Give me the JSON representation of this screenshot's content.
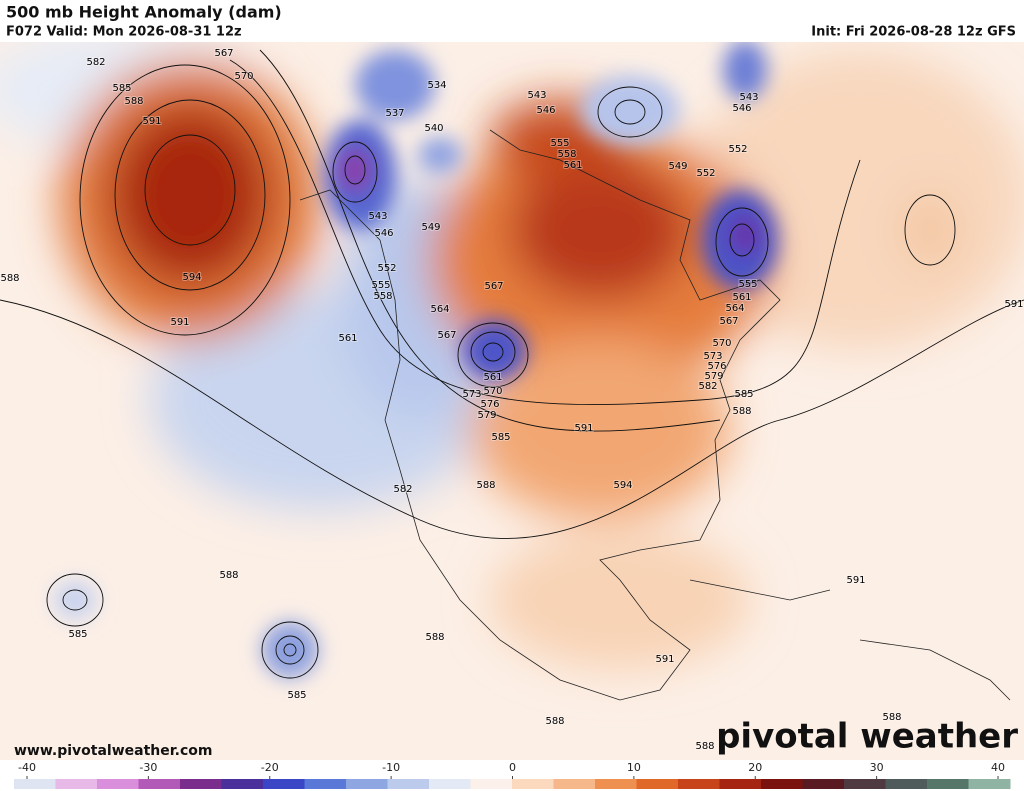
{
  "header": {
    "title": "500 mb Height Anomaly (dam)",
    "valid": "F072 Valid: Mon 2026-08-31 12z",
    "init": "Init: Fri 2026-08-28 12z GFS"
  },
  "footer": {
    "url": "www.pivotalweather.com",
    "logo": "pivotal weather"
  },
  "contour_labels": [
    "567",
    "570",
    "582",
    "585",
    "588",
    "591",
    "594",
    "591",
    "588",
    "534",
    "537",
    "540",
    "543",
    "546",
    "555",
    "558",
    "561",
    "543",
    "546",
    "549",
    "552",
    "552",
    "543",
    "546",
    "549",
    "552",
    "555",
    "558",
    "561",
    "564",
    "567",
    "567",
    "561",
    "570",
    "573",
    "576",
    "579",
    "585",
    "582",
    "588",
    "591",
    "594",
    "555",
    "561",
    "564",
    "567",
    "570",
    "573",
    "576",
    "579",
    "582",
    "585",
    "588",
    "591",
    "588",
    "585",
    "585",
    "588",
    "591",
    "591",
    "588",
    "588",
    "588"
  ],
  "colorbar": {
    "ticks": [
      -40,
      -30,
      -20,
      -10,
      0,
      10,
      20,
      30,
      40
    ],
    "colors": [
      "#dfe4f3",
      "#e6b9e6",
      "#d98fdc",
      "#b35ab8",
      "#7a2d8c",
      "#4b2f9a",
      "#3b46c6",
      "#5a78d8",
      "#8ea6e2",
      "#bccbeb",
      "#e4eaf5",
      "#fbf1ea",
      "#fad9bf",
      "#f6b88a",
      "#ee9050",
      "#e0692a",
      "#c7441a",
      "#a52512",
      "#7a1210",
      "#5a1a22",
      "#4e3a40",
      "#4f5a5a",
      "#56766a",
      "#8fb4a4"
    ]
  }
}
